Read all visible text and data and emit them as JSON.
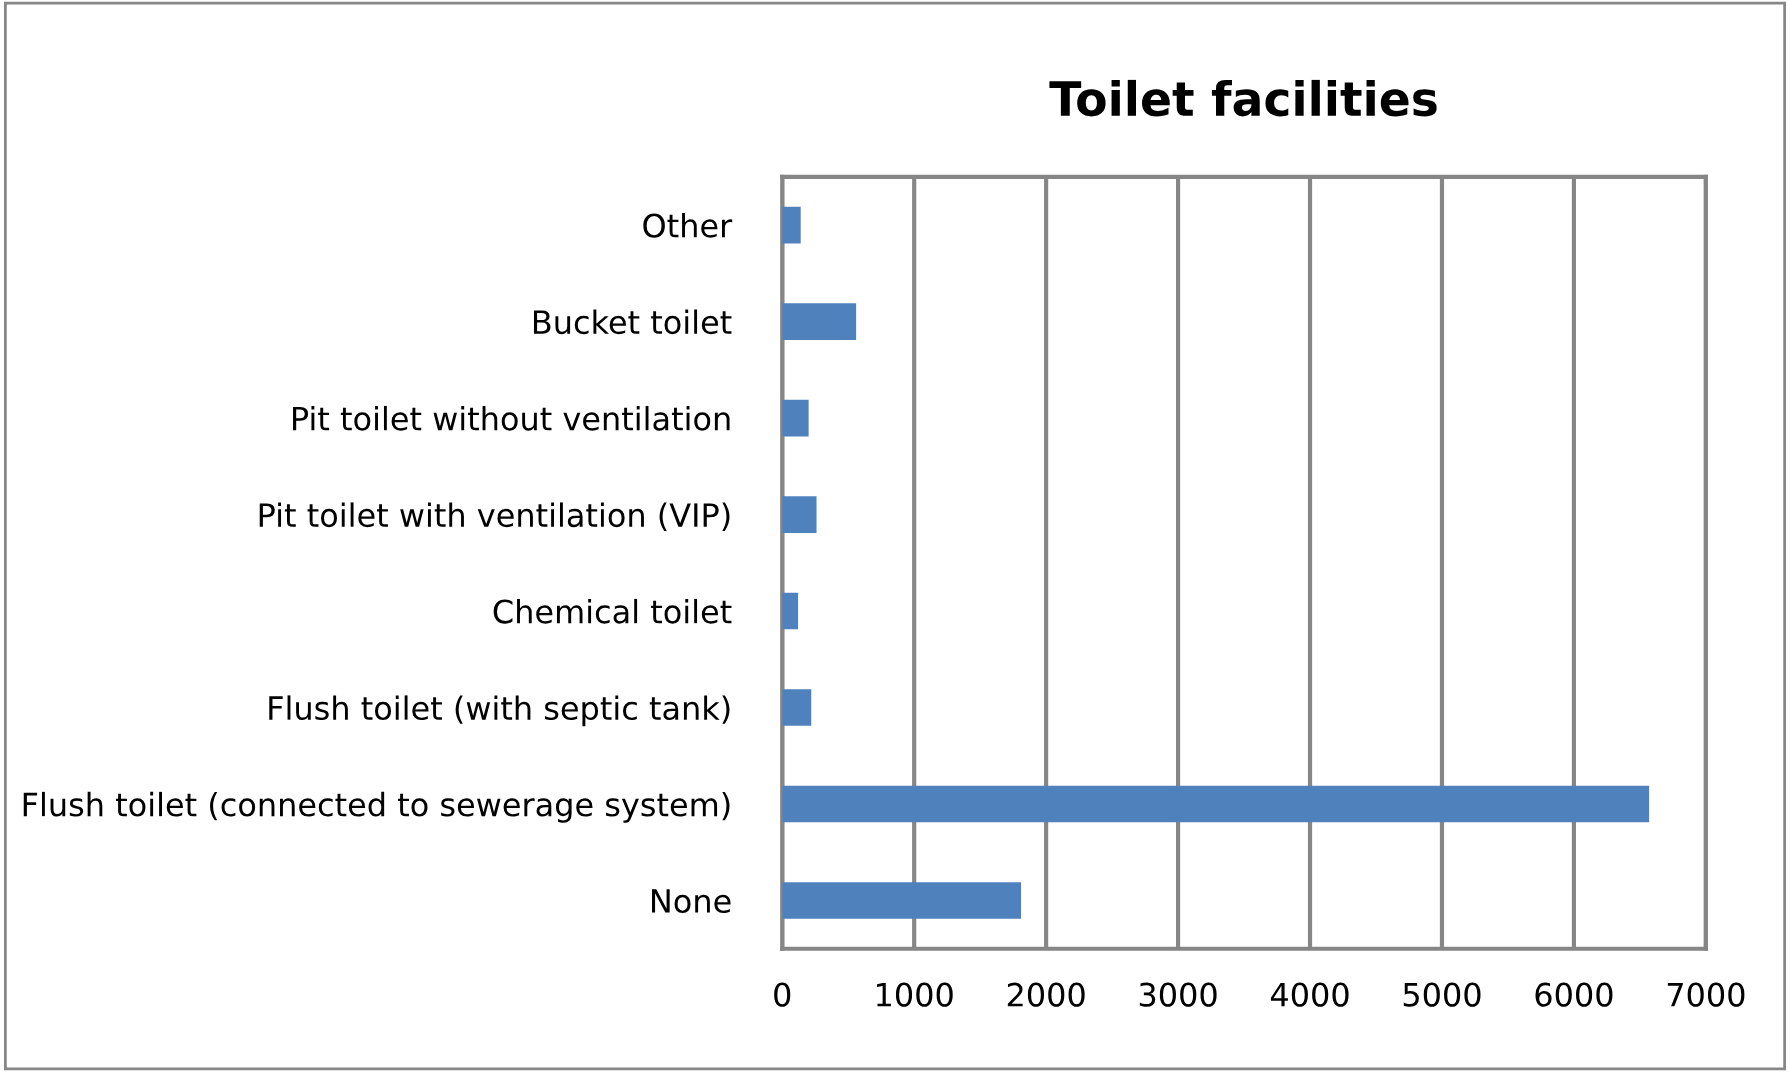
{
  "chart_data": {
    "type": "bar",
    "orientation": "horizontal",
    "title": "Toilet facilities",
    "categories": [
      "Other",
      "Bucket toilet",
      "Pit toilet without ventilation",
      "Pit toilet with ventilation (VIP)",
      "Chemical toilet",
      "Flush toilet (with septic tank)",
      "Flush toilet (connected to sewerage system)",
      "None"
    ],
    "values": [
      140,
      560,
      200,
      260,
      120,
      220,
      6570,
      1810
    ],
    "color": "#4f81bd",
    "xlim": [
      0,
      7000
    ],
    "xticks": [
      0,
      1000,
      2000,
      3000,
      4000,
      5000,
      6000,
      7000
    ],
    "grid": "x",
    "legend": false
  }
}
